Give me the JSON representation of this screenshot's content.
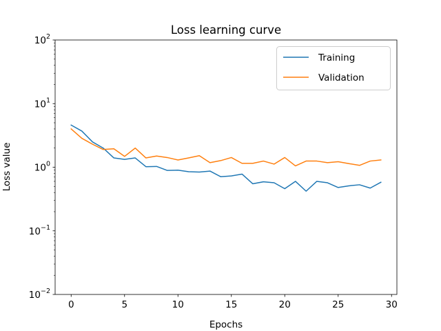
{
  "chart_data": {
    "type": "line",
    "title": "Loss learning curve",
    "xlabel": "Epochs",
    "ylabel": "Loss value",
    "xlim": [
      -1.5,
      30.5
    ],
    "ylim": [
      0.01,
      100
    ],
    "yscale": "log",
    "grid": false,
    "legend_position": "top-right",
    "x": [
      0,
      1,
      2,
      3,
      4,
      5,
      6,
      7,
      8,
      9,
      10,
      11,
      12,
      13,
      14,
      15,
      16,
      17,
      18,
      19,
      20,
      21,
      22,
      23,
      24,
      25,
      26,
      27,
      28,
      29
    ],
    "xticks": [
      0,
      5,
      10,
      15,
      20,
      25,
      30
    ],
    "xtick_labels": [
      "0",
      "5",
      "10",
      "15",
      "20",
      "25",
      "30"
    ],
    "yticks": [
      0.01,
      0.1,
      1,
      10,
      100
    ],
    "ytick_labels": [
      {
        "base": "10",
        "exp": "−2"
      },
      {
        "base": "10",
        "exp": "−1"
      },
      {
        "base": "10",
        "exp": "0"
      },
      {
        "base": "10",
        "exp": "1"
      },
      {
        "base": "10",
        "exp": "2"
      }
    ],
    "series": [
      {
        "name": "Training",
        "color": "#1f77b4",
        "values": [
          4.6,
          3.7,
          2.5,
          2.0,
          1.4,
          1.33,
          1.4,
          1.02,
          1.03,
          0.89,
          0.9,
          0.85,
          0.84,
          0.87,
          0.71,
          0.73,
          0.78,
          0.55,
          0.59,
          0.57,
          0.46,
          0.6,
          0.42,
          0.6,
          0.57,
          0.48,
          0.51,
          0.53,
          0.47,
          0.58
        ]
      },
      {
        "name": "Validation",
        "color": "#ff7f0e",
        "values": [
          4.0,
          2.85,
          2.3,
          1.9,
          1.95,
          1.48,
          2.0,
          1.4,
          1.5,
          1.42,
          1.3,
          1.4,
          1.52,
          1.18,
          1.27,
          1.42,
          1.15,
          1.15,
          1.25,
          1.12,
          1.42,
          1.05,
          1.25,
          1.25,
          1.18,
          1.22,
          1.14,
          1.07,
          1.25,
          1.3
        ]
      }
    ]
  }
}
